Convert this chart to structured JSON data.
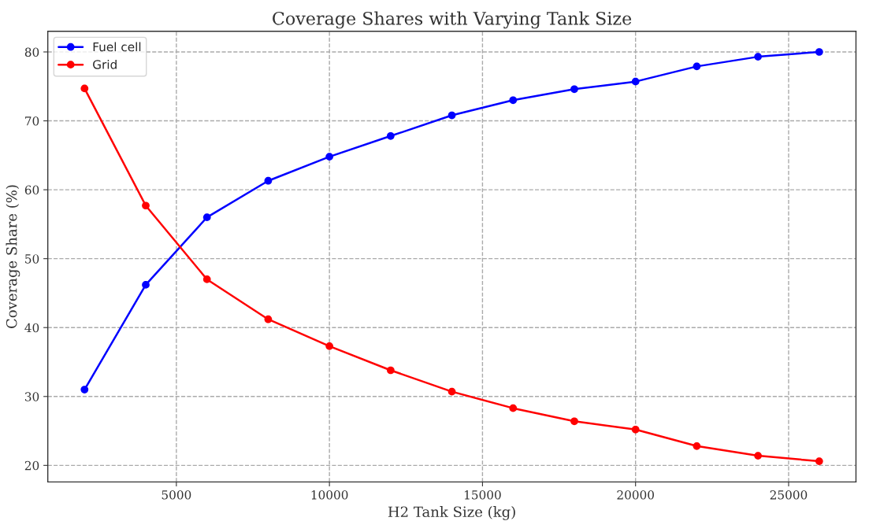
{
  "chart_data": {
    "type": "line",
    "title": "Coverage Shares with Varying Tank Size",
    "xlabel": "H2 Tank Size (kg)",
    "ylabel": "Coverage Share (%)",
    "x": [
      2000,
      4000,
      6000,
      8000,
      10000,
      12000,
      14000,
      16000,
      18000,
      20000,
      22000,
      24000,
      26000
    ],
    "series": [
      {
        "name": "Fuel cell",
        "color": "#0000ff",
        "values": [
          31.0,
          46.2,
          56.0,
          61.3,
          64.8,
          67.8,
          70.8,
          73.0,
          74.6,
          75.7,
          77.9,
          79.3,
          80.0
        ]
      },
      {
        "name": "Grid",
        "color": "#ff0000",
        "values": [
          74.7,
          57.7,
          47.0,
          41.2,
          37.3,
          33.8,
          30.7,
          28.3,
          26.4,
          25.2,
          22.8,
          21.4,
          20.6
        ]
      }
    ],
    "xlim": [
      800,
      27200
    ],
    "xticks": [
      5000,
      10000,
      15000,
      20000,
      25000
    ],
    "ylim": [
      17.6,
      83.0
    ],
    "yticks": [
      20,
      30,
      40,
      50,
      60,
      70,
      80
    ],
    "grid": true,
    "legend": "top left",
    "marker": "circle",
    "line_style": "solid"
  }
}
